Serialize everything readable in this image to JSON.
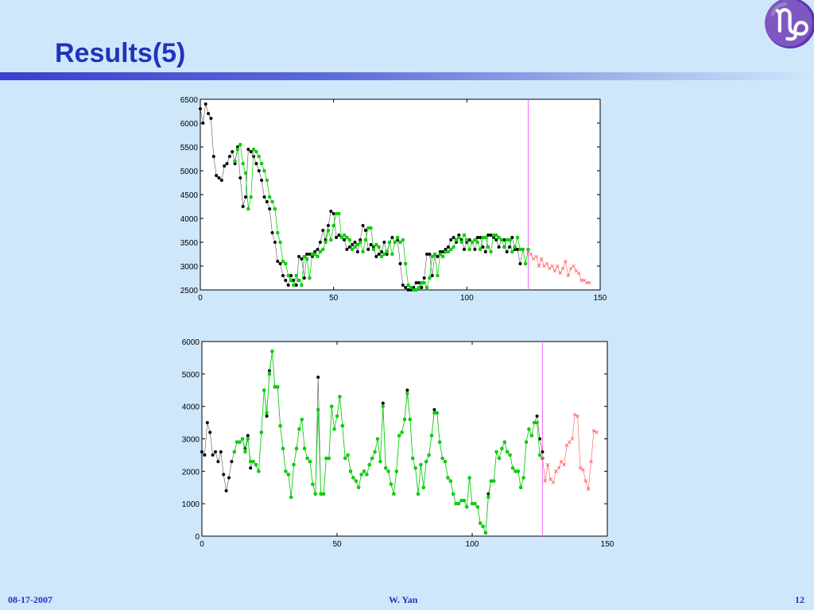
{
  "slide": {
    "title": "Results(5)",
    "logo_glyph": "♑",
    "footer_left": "08-17-2007",
    "footer_center": "W. Yan",
    "footer_right": "12",
    "accent_color": "#2233bb"
  },
  "chart_data": [
    {
      "type": "line",
      "xlim": [
        0,
        150
      ],
      "ylim": [
        2500,
        6500
      ],
      "xticks": [
        0,
        50,
        100,
        150
      ],
      "yticks": [
        2500,
        3000,
        3500,
        4000,
        4500,
        5000,
        5500,
        6000,
        6500
      ],
      "forecast_start": 123,
      "series": [
        {
          "role": "observed",
          "color": "#000000",
          "values": [
            6300,
            6000,
            6400,
            6200,
            6100,
            5300,
            4900,
            4850,
            4800,
            5100,
            5150,
            5300,
            5400,
            5150,
            5500,
            4850,
            4250,
            4450,
            5450,
            5400,
            5300,
            5150,
            5000,
            4800,
            4450,
            4350,
            4200,
            3700,
            3500,
            3100,
            3050,
            2800,
            2700,
            2600,
            2800,
            2700,
            2600,
            3200,
            3150,
            2750,
            3250,
            3250,
            3200,
            3300,
            3350,
            3500,
            3750,
            3550,
            3850,
            4150,
            4100,
            3600,
            3650,
            3600,
            3550,
            3350,
            3400,
            3450,
            3500,
            3300,
            3550,
            3850,
            3750,
            3350,
            3450,
            3400,
            3200,
            3250,
            3300,
            3500,
            3250,
            3500,
            3600,
            3500,
            3550,
            3050,
            2600,
            2550,
            2500,
            2500,
            2550,
            2650,
            2650,
            2550,
            2750,
            3250,
            3250,
            2800,
            3250,
            3200,
            3300,
            3300,
            3350,
            3400,
            3550,
            3600,
            3500,
            3650,
            3550,
            3350,
            3500,
            3550,
            3500,
            3350,
            3600,
            3600,
            3400,
            3300,
            3650,
            3650,
            3600,
            3550,
            3400,
            3550,
            3550,
            3300,
            3400,
            3600,
            3350,
            3350,
            3050,
            3350
          ],
          "x_start": 0
        },
        {
          "role": "fitted",
          "color": "#00dd00",
          "values": [
            5200,
            5450,
            5550,
            5150,
            4950,
            4200,
            4450,
            5450,
            5400,
            5300,
            5150,
            5000,
            4800,
            4450,
            4350,
            4200,
            3700,
            3500,
            3100,
            3050,
            2800,
            2700,
            2600,
            2800,
            2700,
            2600,
            3200,
            3150,
            2750,
            3250,
            3250,
            3200,
            3300,
            3350,
            3500,
            3750,
            3550,
            3850,
            4100,
            4100,
            3600,
            3650,
            3600,
            3550,
            3350,
            3400,
            3450,
            3500,
            3300,
            3550,
            3800,
            3800,
            3350,
            3450,
            3400,
            3200,
            3250,
            3300,
            3500,
            3250,
            3500,
            3600,
            3500,
            3550,
            3050,
            2600,
            2550,
            2500,
            2500,
            2550,
            2650,
            2650,
            2550,
            2750,
            3200,
            3250,
            2800,
            3250,
            3200,
            3300,
            3300,
            3350,
            3400,
            3550,
            3600,
            3500,
            3650,
            3550,
            3350,
            3500,
            3550,
            3500,
            3350,
            3600,
            3600,
            3400,
            3300,
            3650,
            3650,
            3600,
            3550,
            3400,
            3550,
            3550,
            3300,
            3400,
            3600,
            3350,
            3350,
            3050,
            3350
          ],
          "x_start": 13
        },
        {
          "role": "forecast",
          "color": "#ff5555",
          "values": [
            3300,
            3250,
            3150,
            3200,
            3000,
            3150,
            3000,
            3050,
            2950,
            3000,
            2900,
            3000,
            2850,
            2950,
            3100,
            2800,
            2950,
            3000,
            2900,
            2850,
            2700,
            2700,
            2650,
            2650
          ],
          "x_start": 123
        }
      ]
    },
    {
      "type": "line",
      "xlim": [
        0,
        150
      ],
      "ylim": [
        0,
        6000
      ],
      "xticks": [
        0,
        50,
        100,
        150
      ],
      "yticks": [
        0,
        1000,
        2000,
        3000,
        4000,
        5000,
        6000
      ],
      "forecast_start": 126,
      "series": [
        {
          "role": "observed",
          "color": "#000000",
          "values": [
            2600,
            2500,
            3500,
            3200,
            2500,
            2600,
            2300,
            2600,
            1900,
            1400,
            1800,
            2300,
            2600,
            2900,
            2900,
            3000,
            2700,
            3100,
            2100,
            2300,
            2200,
            2000,
            3200,
            4500,
            3700,
            5100,
            5700,
            4600,
            4600,
            3400,
            2700,
            2000,
            1900,
            1200,
            2200,
            2700,
            3300,
            3600,
            2700,
            2400,
            2300,
            1600,
            1300,
            4900,
            1300,
            1300,
            2400,
            2400,
            4000,
            3300,
            3700,
            4300,
            3400,
            2400,
            2500,
            2000,
            1800,
            1700,
            1500,
            1900,
            2000,
            1900,
            2200,
            2400,
            2600,
            3000,
            2300,
            4100,
            2100,
            2000,
            1600,
            1300,
            2000,
            3100,
            3200,
            3600,
            4500,
            3600,
            2400,
            2100,
            1300,
            2200,
            1500,
            2300,
            2500,
            3100,
            3900,
            3800,
            2900,
            2400,
            2300,
            1800,
            1700,
            1300,
            1000,
            1000,
            1100,
            1100,
            900,
            1800,
            1000,
            1000,
            900,
            400,
            300,
            100,
            1300,
            1700,
            1700,
            2600,
            2400,
            2700,
            2900,
            2600,
            2500,
            2100,
            2000,
            2000,
            1500,
            1800,
            2900,
            3300,
            3100,
            3500,
            3700,
            3000,
            2600
          ],
          "x_start": 0
        },
        {
          "role": "fitted",
          "color": "#00dd00",
          "values": [
            2600,
            2900,
            2900,
            3000,
            2600,
            3000,
            2300,
            2300,
            2200,
            2000,
            3200,
            4500,
            3800,
            5000,
            5700,
            4600,
            4600,
            3400,
            2700,
            2000,
            1900,
            1200,
            2200,
            2700,
            3300,
            3600,
            2700,
            2400,
            2300,
            1600,
            1300,
            3900,
            1300,
            1300,
            2400,
            2400,
            4000,
            3300,
            3700,
            4300,
            3400,
            2400,
            2500,
            2000,
            1800,
            1700,
            1500,
            1900,
            2000,
            1900,
            2200,
            2400,
            2600,
            3000,
            2300,
            4000,
            2100,
            2000,
            1600,
            1300,
            2000,
            3100,
            3200,
            3600,
            4400,
            3600,
            2400,
            2100,
            1300,
            2200,
            1500,
            2300,
            2500,
            3100,
            3800,
            3800,
            2900,
            2400,
            2300,
            1800,
            1700,
            1300,
            1000,
            1000,
            1100,
            1100,
            900,
            1800,
            1000,
            1000,
            900,
            400,
            300,
            100,
            1200,
            1700,
            1700,
            2600,
            2400,
            2700,
            2900,
            2600,
            2500,
            2100,
            2000,
            2000,
            1500,
            1800,
            2900,
            3300,
            3100,
            3500,
            3500,
            2500,
            2400
          ],
          "x_start": 12
        },
        {
          "role": "forecast",
          "color": "#ff5555",
          "values": [
            2400,
            1700,
            2200,
            1750,
            1650,
            2000,
            2100,
            2300,
            2200,
            2800,
            2900,
            3000,
            3750,
            3700,
            2100,
            2050,
            1700,
            1450,
            2300,
            3250,
            3200
          ],
          "x_start": 126
        }
      ]
    }
  ]
}
